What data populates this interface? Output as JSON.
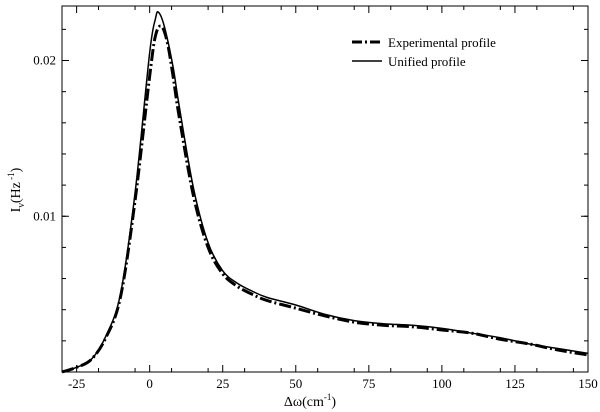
{
  "chart_data": {
    "type": "line",
    "xlabel": "Δω(cm",
    "xlabel_sup": "-1",
    "xlabel_close": ")",
    "ylabel": "I",
    "ylabel_sub": "ν",
    "ylabel_mid": "(Hz",
    "ylabel_sup": " -1",
    "ylabel_close": ")",
    "xlim": [
      -30,
      150
    ],
    "ylim": [
      0,
      0.0235
    ],
    "x_ticks": [
      -25,
      0,
      25,
      50,
      75,
      100,
      125,
      150
    ],
    "x_tick_labels": [
      "-25",
      "0",
      "25",
      "50",
      "75",
      "100",
      "125",
      "150"
    ],
    "y_ticks": [
      0.01,
      0.02
    ],
    "y_tick_labels": [
      "0.01",
      "0.02"
    ],
    "grid": false,
    "legend_position": "top-right",
    "series": [
      {
        "name": "Experimental profile",
        "style": "dash-dot",
        "color": "#000000",
        "x": [
          -30,
          -25,
          -20,
          -15,
          -10,
          -5,
          0,
          2,
          4,
          6,
          8,
          10,
          15,
          20,
          25,
          30,
          35,
          40,
          50,
          60,
          70,
          80,
          90,
          100,
          110,
          120,
          130,
          140,
          150
        ],
        "y": [
          0.0,
          0.0003,
          0.0008,
          0.0022,
          0.0048,
          0.011,
          0.019,
          0.0216,
          0.0222,
          0.0212,
          0.019,
          0.0165,
          0.0113,
          0.008,
          0.0063,
          0.0055,
          0.005,
          0.0046,
          0.0041,
          0.0036,
          0.0032,
          0.003,
          0.0029,
          0.0027,
          0.0025,
          0.0021,
          0.0018,
          0.0014,
          0.0011
        ]
      },
      {
        "name": "Unified profile",
        "style": "solid",
        "color": "#000000",
        "x": [
          -30,
          -25,
          -20,
          -15,
          -10,
          -5,
          0,
          2,
          3,
          5,
          8,
          10,
          15,
          20,
          25,
          30,
          35,
          40,
          50,
          60,
          70,
          80,
          90,
          100,
          110,
          120,
          130,
          140,
          150
        ],
        "y": [
          0.0,
          0.0003,
          0.0008,
          0.0023,
          0.005,
          0.0115,
          0.0205,
          0.0227,
          0.0231,
          0.0222,
          0.0196,
          0.0172,
          0.0118,
          0.0083,
          0.0065,
          0.0057,
          0.0052,
          0.0048,
          0.0043,
          0.0037,
          0.0033,
          0.0031,
          0.003,
          0.0028,
          0.0025,
          0.0022,
          0.0018,
          0.0015,
          0.0012
        ]
      }
    ]
  }
}
